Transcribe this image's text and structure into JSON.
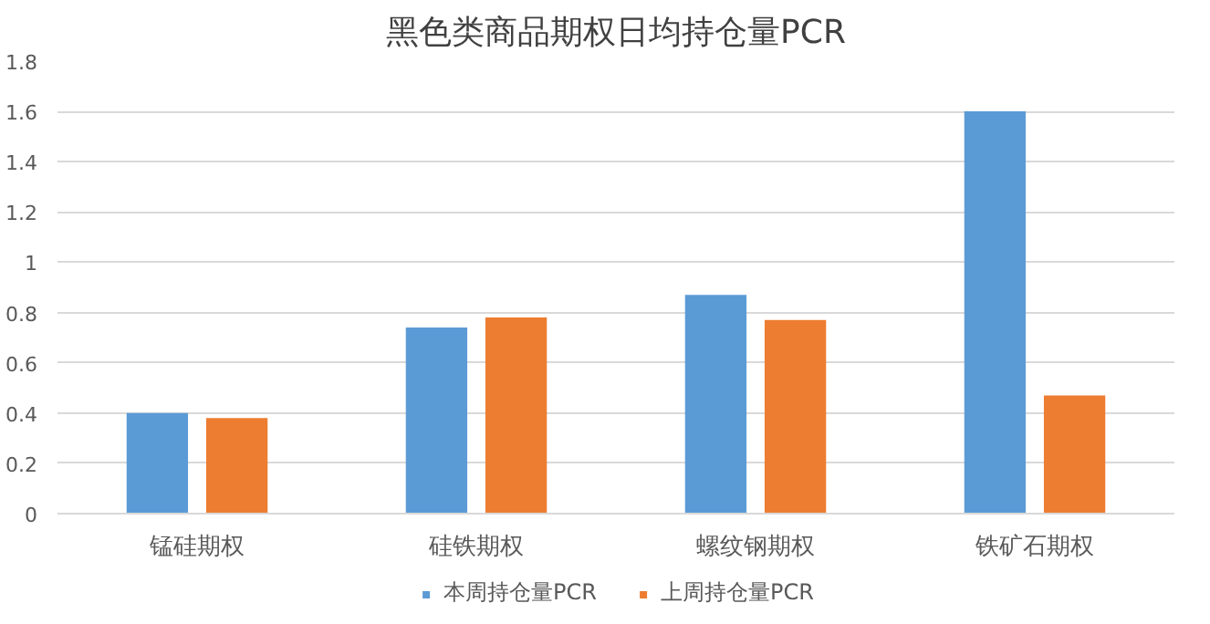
{
  "chart_data": {
    "type": "bar",
    "title": "黑色类商品期权日均持仓量PCR",
    "categories": [
      "锰硅期权",
      "硅铁期权",
      "螺纹钢期权",
      "铁矿石期权"
    ],
    "series": [
      {
        "name": "本周持仓量PCR",
        "color": "#5b9bd5",
        "values": [
          0.4,
          0.74,
          0.87,
          1.6
        ]
      },
      {
        "name": "上周持仓量PCR",
        "color": "#ed7d31",
        "values": [
          0.38,
          0.78,
          0.77,
          0.47
        ]
      }
    ],
    "ylim": [
      0,
      1.8
    ],
    "yticks": [
      0,
      0.2,
      0.4,
      0.6,
      0.8,
      1,
      1.2,
      1.4,
      1.6,
      1.8
    ],
    "grid": "y",
    "legend": "bottom"
  }
}
